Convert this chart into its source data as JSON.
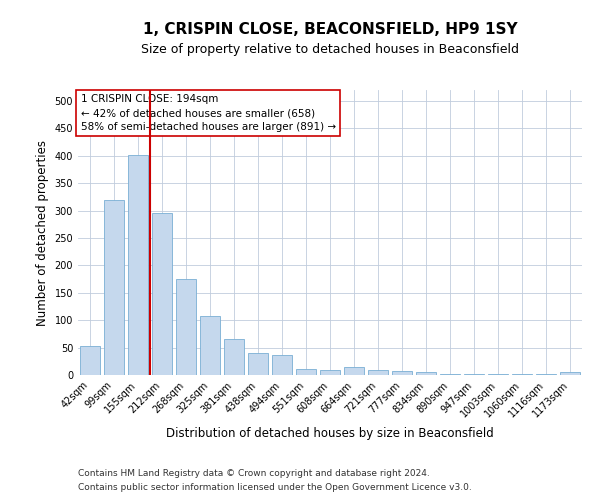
{
  "title": "1, CRISPIN CLOSE, BEACONSFIELD, HP9 1SY",
  "subtitle": "Size of property relative to detached houses in Beaconsfield",
  "xlabel": "Distribution of detached houses by size in Beaconsfield",
  "ylabel": "Number of detached properties",
  "footer_line1": "Contains HM Land Registry data © Crown copyright and database right 2024.",
  "footer_line2": "Contains public sector information licensed under the Open Government Licence v3.0.",
  "categories": [
    "42sqm",
    "99sqm",
    "155sqm",
    "212sqm",
    "268sqm",
    "325sqm",
    "381sqm",
    "438sqm",
    "494sqm",
    "551sqm",
    "608sqm",
    "664sqm",
    "721sqm",
    "777sqm",
    "834sqm",
    "890sqm",
    "947sqm",
    "1003sqm",
    "1060sqm",
    "1116sqm",
    "1173sqm"
  ],
  "values": [
    53,
    320,
    401,
    296,
    176,
    107,
    65,
    40,
    36,
    11,
    9,
    15,
    9,
    7,
    5,
    2,
    1,
    1,
    1,
    1,
    6
  ],
  "bar_color": "#c5d8ed",
  "bar_edge_color": "#7aafd4",
  "vline_color": "#cc0000",
  "annotation_text": "1 CRISPIN CLOSE: 194sqm\n← 42% of detached houses are smaller (658)\n58% of semi-detached houses are larger (891) →",
  "annotation_box_color": "#ffffff",
  "annotation_box_edge": "#cc0000",
  "ylim": [
    0,
    520
  ],
  "yticks": [
    0,
    50,
    100,
    150,
    200,
    250,
    300,
    350,
    400,
    450,
    500
  ],
  "bg_color": "#ffffff",
  "grid_color": "#c0ccdd",
  "title_fontsize": 11,
  "subtitle_fontsize": 9,
  "axis_label_fontsize": 8.5,
  "tick_fontsize": 7,
  "footer_fontsize": 6.5
}
